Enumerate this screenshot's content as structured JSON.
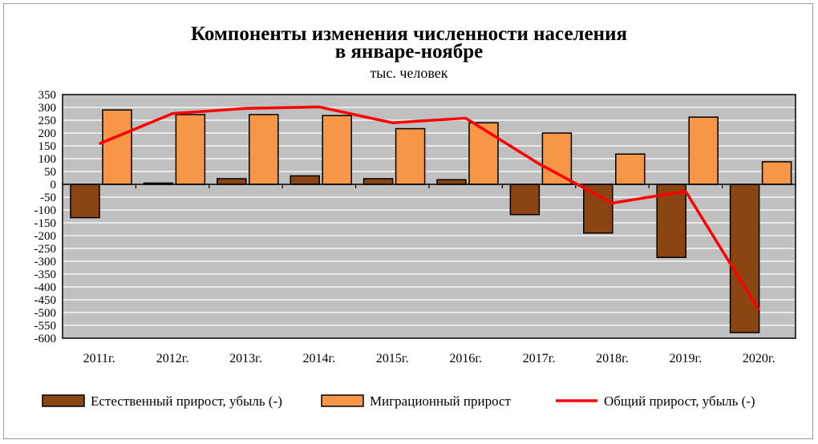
{
  "chart_data": {
    "type": "bar",
    "title": "Компоненты изменения численности населения",
    "title_line2": "в январе-ноябре",
    "subtitle": "тыс. человек",
    "categories": [
      "2011г.",
      "2012г.",
      "2013г.",
      "2014г.",
      "2015г.",
      "2016г.",
      "2017г.",
      "2018г.",
      "2019г.",
      "2020г."
    ],
    "series": [
      {
        "name": "Естественный  прирост,  убыль (-)",
        "type": "bar",
        "color": "#8B4513",
        "values": [
          -130,
          5,
          22,
          33,
          22,
          18,
          -118,
          -190,
          -285,
          -578
        ]
      },
      {
        "name": "Миграционный  прирост",
        "type": "bar",
        "color": "#F79646",
        "values": [
          290,
          272,
          272,
          268,
          217,
          240,
          200,
          118,
          262,
          88
        ]
      },
      {
        "name": "Общий  прирост,  убыль (-)",
        "type": "line",
        "color": "#FF0000",
        "values": [
          158,
          276,
          296,
          302,
          240,
          258,
          80,
          -73,
          -27,
          -490
        ]
      }
    ],
    "ylim": [
      -600,
      350
    ],
    "ytick_step": 50,
    "grid": true,
    "legend_position": "bottom"
  }
}
